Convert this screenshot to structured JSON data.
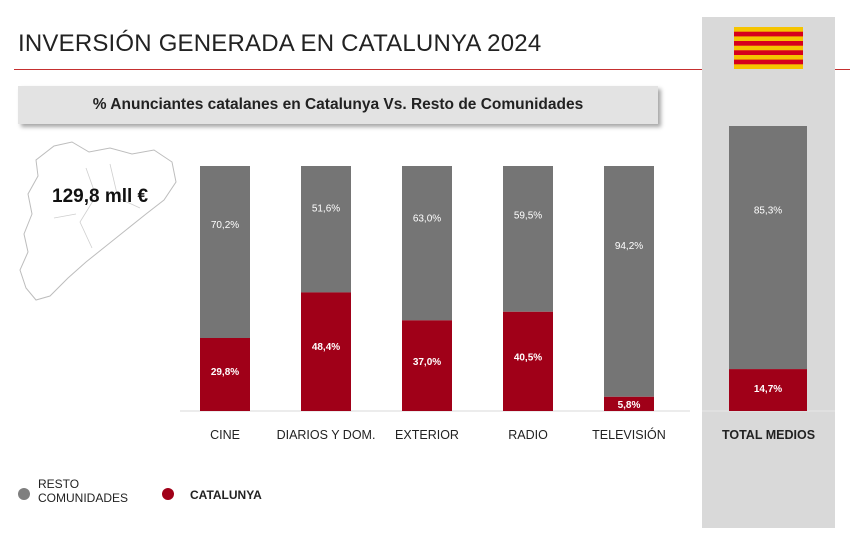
{
  "page": {
    "title": "INVERSIÓN GENERADA EN CATALUNYA 2024",
    "subtitle": "% Anunciantes catalanes en Catalunya Vs. Resto de Comunidades",
    "amount": "129,8 mll €",
    "total_label": "TOTAL MEDIOS"
  },
  "legend": {
    "resto": "RESTO\nCOMUNIDADES",
    "catalunya": "CATALUNYA"
  },
  "colors": {
    "resto": "#757575",
    "catalunya": "#a00018",
    "flag_yellow": "#f5c400",
    "flag_red": "#d6001c",
    "accent_rule": "#c53030"
  },
  "chart_data": {
    "type": "bar",
    "stacked": true,
    "percent": true,
    "categories": [
      "CINE",
      "DIARIOS Y DOM.",
      "EXTERIOR",
      "RADIO",
      "TELEVISIÓN",
      "TOTAL MEDIOS"
    ],
    "series": [
      {
        "name": "CATALUNYA",
        "values": [
          29.8,
          48.4,
          37.0,
          40.5,
          5.8,
          14.7
        ],
        "labels": [
          "29,8%",
          "48,4%",
          "37,0%",
          "40,5%",
          "5,8%",
          "14,7%"
        ]
      },
      {
        "name": "RESTO COMUNIDADES",
        "values": [
          70.2,
          51.6,
          63.0,
          59.5,
          94.2,
          85.3
        ],
        "labels": [
          "70,2%",
          "51,6%",
          "63,0%",
          "59,5%",
          "94,2%",
          "85,3%"
        ]
      }
    ],
    "ylim": [
      0,
      100
    ],
    "legend_position": "bottom-left",
    "grid": false
  }
}
